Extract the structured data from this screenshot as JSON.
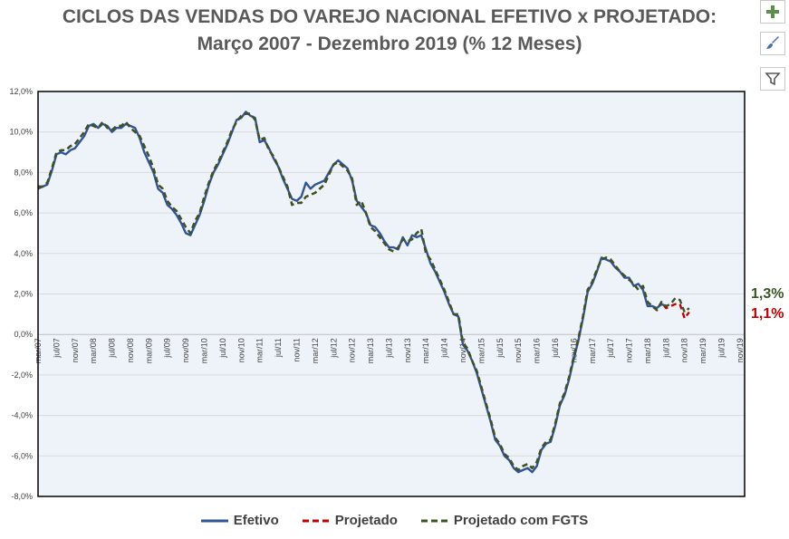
{
  "title_line1": "CICLOS DAS VENDAS DO VAREJO NACIONAL EFETIVO x PROJETADO:",
  "title_line2": "Março 2007 - Dezembro 2019 (% 12 Meses)",
  "toolbar": {
    "add_icon": "plus-icon",
    "style_icon": "brush-icon",
    "filter_icon": "filter-icon"
  },
  "end_labels": {
    "fgts": "1,3%",
    "projetado": "1,1%"
  },
  "colors": {
    "efetivo": "#2f5597",
    "projetado": "#c00000",
    "fgts": "#375623",
    "plot_bg": "#eef3fa",
    "grid": "#d9d9d9"
  },
  "chart_data": {
    "type": "line",
    "title": "CICLOS DAS VENDAS DO VAREJO NACIONAL EFETIVO x PROJETADO: Março 2007 - Dezembro 2019 (% 12 Meses)",
    "ylim": [
      -8,
      12
    ],
    "y_ticks": [
      "-8,0%",
      "-6,0%",
      "-4,0%",
      "-2,0%",
      "0,0%",
      "2,0%",
      "4,0%",
      "6,0%",
      "8,0%",
      "10,0%",
      "12,0%"
    ],
    "x_start": "mar/07",
    "x_ticks": [
      "mar/07",
      "jul/07",
      "nov/07",
      "mar/08",
      "jul/08",
      "nov/08",
      "mar/09",
      "jul/09",
      "nov/09",
      "mar/10",
      "jul/10",
      "nov/10",
      "mar/11",
      "jul/11",
      "nov/11",
      "mar/12",
      "jul/12",
      "nov/12",
      "mar/13",
      "jul/13",
      "nov/13",
      "mar/14",
      "jul/14",
      "nov/14",
      "mar/15",
      "jul/15",
      "nov/15",
      "mar/16",
      "jul/16",
      "nov/16",
      "mar/17",
      "jul/17",
      "nov/17",
      "mar/18",
      "jul/18",
      "nov/18",
      "mar/19",
      "jul/19",
      "nov/19"
    ],
    "grid": "horizontal",
    "legend_position": "bottom",
    "series": [
      {
        "name": "Efetivo",
        "values": [
          7.2,
          7.3,
          7.4,
          8.1,
          8.9,
          9.0,
          8.9,
          9.1,
          9.2,
          9.5,
          9.8,
          10.3,
          10.4,
          10.2,
          10.4,
          10.3,
          10.0,
          10.2,
          10.2,
          10.4,
          10.3,
          10.2,
          9.7,
          9.0,
          8.5,
          8.0,
          7.2,
          7.0,
          6.4,
          6.2,
          5.9,
          5.5,
          5.0,
          4.9,
          5.4,
          5.9,
          6.6,
          7.4,
          8.0,
          8.4,
          8.9,
          9.4,
          10.0,
          10.6,
          10.7,
          11.0,
          10.8,
          10.7,
          9.5,
          9.6,
          9.2,
          8.7,
          8.3,
          7.7,
          7.2,
          6.7,
          6.6,
          6.8,
          7.5,
          7.2,
          7.4,
          7.5,
          7.6,
          8.0,
          8.4,
          8.6,
          8.4,
          8.2,
          7.6,
          6.6,
          6.3,
          6.0,
          5.4,
          5.3,
          5.0,
          4.6,
          4.3,
          4.3,
          4.2,
          4.8,
          4.4,
          4.9,
          4.8,
          4.9,
          4.2,
          3.5,
          3.1,
          2.6,
          2.1,
          1.5,
          1.0,
          0.9,
          -0.5,
          -0.8,
          -1.3,
          -1.9,
          -2.7,
          -3.5,
          -4.3,
          -5.2,
          -5.5,
          -6.0,
          -6.2,
          -6.6,
          -6.8,
          -6.7,
          -6.6,
          -6.8,
          -6.5,
          -5.7,
          -5.4,
          -5.3,
          -4.5,
          -3.5,
          -3.0,
          -2.2,
          -1.2,
          -0.3,
          0.8,
          2.1,
          2.5,
          3.1,
          3.8,
          3.7,
          3.6,
          3.3,
          3.1,
          2.8,
          2.8,
          2.4,
          2.5,
          2.2,
          1.4,
          1.4,
          1.3,
          1.5,
          1.4
        ]
      },
      {
        "name": "Projetado",
        "values": [
          7.3,
          7.3,
          7.5,
          8.2,
          9.0,
          9.1,
          9.1,
          9.3,
          9.4,
          9.7,
          10.0,
          10.4,
          10.3,
          10.2,
          10.5,
          10.2,
          10.1,
          10.3,
          10.3,
          10.5,
          10.2,
          10.0,
          9.8,
          9.3,
          8.8,
          8.2,
          7.4,
          7.2,
          6.6,
          6.3,
          6.1,
          5.7,
          5.3,
          5.0,
          5.6,
          6.0,
          6.8,
          7.5,
          8.1,
          8.5,
          9.0,
          9.5,
          10.1,
          10.5,
          10.8,
          10.9,
          10.9,
          10.6,
          9.6,
          9.7,
          9.1,
          8.8,
          8.3,
          7.8,
          7.3,
          6.4,
          6.5,
          6.5,
          6.8,
          6.9,
          7.0,
          7.2,
          7.4,
          7.9,
          8.4,
          8.5,
          8.3,
          8.1,
          7.7,
          6.4,
          6.6,
          6.0,
          5.3,
          5.1,
          4.8,
          4.5,
          4.2,
          4.1,
          4.3,
          4.7,
          4.6,
          4.7,
          5.0,
          5.2,
          4.0,
          3.7,
          3.2,
          2.7,
          2.2,
          1.6,
          1.0,
          1.0,
          -0.4,
          -0.7,
          -1.3,
          -1.8,
          -2.6,
          -3.4,
          -4.2,
          -5.1,
          -5.4,
          -5.9,
          -6.1,
          -6.5,
          -6.7,
          -6.5,
          -6.4,
          -6.6,
          -6.3,
          -5.6,
          -5.3,
          -5.2,
          -4.4,
          -3.4,
          -2.9,
          -2.1,
          -1.1,
          -0.2,
          0.9,
          2.2,
          2.6,
          3.2,
          3.7,
          3.8,
          3.7,
          3.4,
          3.1,
          2.9,
          2.7,
          2.5,
          2.2,
          2.4,
          1.6,
          1.4,
          1.2,
          1.6,
          1.3,
          1.4,
          1.5,
          1.5,
          0.8,
          1.1
        ]
      },
      {
        "name": "Projetado com FGTS",
        "values": [
          7.3,
          7.3,
          7.5,
          8.2,
          9.0,
          9.1,
          9.1,
          9.3,
          9.4,
          9.7,
          10.0,
          10.4,
          10.3,
          10.2,
          10.5,
          10.2,
          10.1,
          10.3,
          10.3,
          10.5,
          10.2,
          10.0,
          9.8,
          9.3,
          8.8,
          8.2,
          7.4,
          7.2,
          6.6,
          6.3,
          6.1,
          5.7,
          5.3,
          5.0,
          5.6,
          6.0,
          6.8,
          7.5,
          8.1,
          8.5,
          9.0,
          9.5,
          10.1,
          10.5,
          10.8,
          10.9,
          10.9,
          10.6,
          9.6,
          9.7,
          9.1,
          8.8,
          8.3,
          7.8,
          7.3,
          6.4,
          6.5,
          6.5,
          6.8,
          6.9,
          7.0,
          7.2,
          7.4,
          7.9,
          8.4,
          8.5,
          8.3,
          8.1,
          7.7,
          6.4,
          6.6,
          6.0,
          5.3,
          5.1,
          4.8,
          4.5,
          4.2,
          4.1,
          4.3,
          4.7,
          4.6,
          4.7,
          5.0,
          5.2,
          4.0,
          3.7,
          3.2,
          2.7,
          2.2,
          1.6,
          1.0,
          1.0,
          -0.4,
          -0.7,
          -1.3,
          -1.8,
          -2.6,
          -3.4,
          -4.2,
          -5.1,
          -5.4,
          -5.9,
          -6.1,
          -6.5,
          -6.7,
          -6.5,
          -6.4,
          -6.6,
          -6.3,
          -5.6,
          -5.3,
          -5.2,
          -4.4,
          -3.4,
          -2.9,
          -2.1,
          -1.1,
          -0.2,
          0.9,
          2.2,
          2.6,
          3.2,
          3.7,
          3.8,
          3.7,
          3.4,
          3.1,
          2.9,
          2.7,
          2.5,
          2.2,
          2.4,
          1.6,
          1.4,
          1.2,
          1.6,
          1.4,
          1.5,
          1.8,
          1.7,
          1.1,
          1.3
        ]
      }
    ]
  }
}
